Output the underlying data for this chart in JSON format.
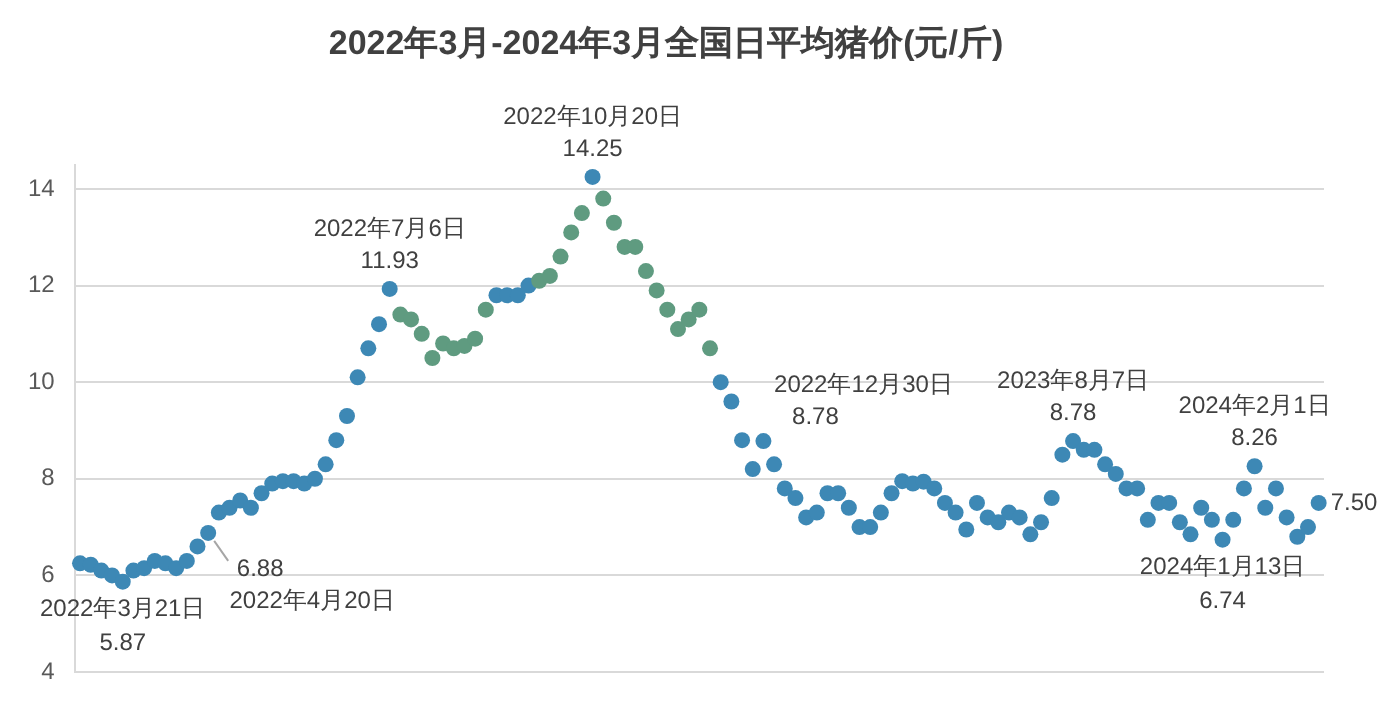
{
  "chart_data": {
    "type": "scatter",
    "title": "2022年3月-2024年3月全国日平均猪价(元/斤)",
    "categories": [
      null,
      null,
      null,
      null,
      null,
      null,
      null,
      null,
      null,
      null,
      null,
      null,
      null,
      null,
      null,
      null,
      null,
      null,
      null,
      null,
      null,
      null,
      null,
      null,
      null,
      null,
      null,
      null,
      null,
      null,
      null,
      null,
      null,
      null,
      null,
      null,
      null,
      null,
      null,
      null,
      null,
      null,
      null,
      null,
      null,
      null,
      null,
      null,
      null,
      null,
      null,
      null,
      null,
      null,
      null,
      null,
      null,
      null,
      null,
      null,
      null,
      null,
      null,
      null,
      null,
      null,
      null,
      null,
      null,
      null,
      null,
      null,
      null,
      null,
      null,
      null,
      null,
      null,
      null,
      null,
      null,
      null,
      null,
      null,
      null,
      null,
      null,
      null,
      null,
      null,
      null,
      null,
      null,
      null,
      null,
      null,
      null,
      null,
      null,
      null,
      null,
      null,
      null,
      null,
      null,
      null,
      null,
      null,
      null,
      null,
      null,
      null,
      null,
      null,
      null,
      null,
      null
    ],
    "values": [
      6.25,
      6.22,
      6.1,
      6.0,
      5.87,
      6.1,
      6.15,
      6.3,
      6.25,
      6.15,
      6.3,
      6.6,
      6.88,
      7.3,
      7.4,
      7.55,
      7.4,
      7.7,
      7.9,
      7.95,
      7.95,
      7.9,
      8.0,
      8.3,
      8.8,
      9.3,
      10.1,
      10.7,
      11.2,
      11.93,
      11.4,
      11.3,
      11.0,
      10.5,
      10.8,
      10.7,
      10.75,
      10.9,
      11.5,
      11.8,
      11.8,
      11.8,
      12.0,
      12.1,
      12.2,
      12.6,
      13.1,
      13.5,
      14.25,
      13.8,
      13.3,
      12.8,
      12.8,
      12.3,
      11.9,
      11.5,
      11.1,
      11.3,
      11.5,
      10.7,
      10.0,
      9.6,
      8.8,
      8.2,
      8.78,
      8.3,
      7.8,
      7.6,
      7.2,
      7.3,
      7.7,
      7.7,
      7.4,
      7.0,
      7.0,
      7.3,
      7.7,
      7.95,
      7.9,
      7.94,
      7.8,
      7.5,
      7.3,
      6.95,
      7.5,
      7.2,
      7.1,
      7.3,
      7.2,
      6.85,
      7.1,
      7.6,
      8.5,
      8.78,
      8.6,
      8.6,
      8.3,
      8.1,
      7.8,
      7.8,
      7.15,
      7.5,
      7.5,
      7.1,
      6.85,
      7.4,
      7.15,
      6.74,
      7.15,
      7.8,
      8.26,
      7.4,
      7.8,
      7.2,
      6.8,
      7.0,
      7.5
    ],
    "colors": [
      "#3d88b5",
      "#3d88b5",
      "#3d88b5",
      "#3d88b5",
      "#3d88b5",
      "#3d88b5",
      "#3d88b5",
      "#3d88b5",
      "#3d88b5",
      "#3d88b5",
      "#3d88b5",
      "#3d88b5",
      "#3d88b5",
      "#3d88b5",
      "#3d88b5",
      "#3d88b5",
      "#3d88b5",
      "#3d88b5",
      "#3d88b5",
      "#3d88b5",
      "#3d88b5",
      "#3d88b5",
      "#3d88b5",
      "#3d88b5",
      "#3d88b5",
      "#3d88b5",
      "#3d88b5",
      "#3d88b5",
      "#3d88b5",
      "#3d88b5",
      "#5f9b80",
      "#5f9b80",
      "#5f9b80",
      "#5f9b80",
      "#5f9b80",
      "#5f9b80",
      "#5f9b80",
      "#5f9b80",
      "#5f9b80",
      "#3d88b5",
      "#3d88b5",
      "#3d88b5",
      "#3d88b5",
      "#5f9b80",
      "#5f9b80",
      "#5f9b80",
      "#5f9b80",
      "#5f9b80",
      "#3d88b5",
      "#5f9b80",
      "#5f9b80",
      "#5f9b80",
      "#5f9b80",
      "#5f9b80",
      "#5f9b80",
      "#5f9b80",
      "#5f9b80",
      "#5f9b80",
      "#5f9b80",
      "#5f9b80",
      "#3d88b5",
      "#3d88b5",
      "#3d88b5",
      "#3d88b5",
      "#3d88b5",
      "#3d88b5",
      "#3d88b5",
      "#3d88b5",
      "#3d88b5",
      "#3d88b5",
      "#3d88b5",
      "#3d88b5",
      "#3d88b5",
      "#3d88b5",
      "#3d88b5",
      "#3d88b5",
      "#3d88b5",
      "#3d88b5",
      "#3d88b5",
      "#3d88b5",
      "#3d88b5",
      "#3d88b5",
      "#3d88b5",
      "#3d88b5",
      "#3d88b5",
      "#3d88b5",
      "#3d88b5",
      "#3d88b5",
      "#3d88b5",
      "#3d88b5",
      "#3d88b5",
      "#3d88b5",
      "#3d88b5",
      "#3d88b5",
      "#3d88b5",
      "#3d88b5",
      "#3d88b5",
      "#3d88b5",
      "#3d88b5",
      "#3d88b5",
      "#3d88b5",
      "#3d88b5",
      "#3d88b5",
      "#3d88b5",
      "#3d88b5",
      "#3d88b5",
      "#3d88b5",
      "#3d88b5",
      "#3d88b5",
      "#3d88b5",
      "#3d88b5",
      "#3d88b5",
      "#3d88b5",
      "#3d88b5",
      "#3d88b5",
      "#3d88b5",
      "#3d88b5"
    ],
    "value_labels": [
      null,
      null,
      null,
      null,
      "5.87",
      null,
      null,
      null,
      null,
      null,
      null,
      null,
      "6.88",
      null,
      null,
      null,
      null,
      null,
      null,
      null,
      null,
      null,
      null,
      null,
      null,
      null,
      null,
      null,
      null,
      "11.93",
      null,
      null,
      null,
      null,
      null,
      null,
      null,
      null,
      null,
      null,
      null,
      null,
      null,
      null,
      null,
      null,
      null,
      null,
      "14.25",
      null,
      null,
      null,
      null,
      null,
      null,
      null,
      null,
      null,
      null,
      null,
      null,
      null,
      null,
      null,
      "8.78",
      null,
      null,
      null,
      null,
      null,
      null,
      null,
      null,
      null,
      null,
      null,
      null,
      null,
      null,
      null,
      null,
      null,
      null,
      null,
      null,
      null,
      null,
      null,
      null,
      null,
      null,
      null,
      null,
      "8.78",
      null,
      null,
      null,
      null,
      null,
      null,
      null,
      null,
      null,
      null,
      null,
      null,
      null,
      "6.74",
      null,
      null,
      "8.26",
      null,
      null,
      null,
      null,
      null,
      "7.50"
    ],
    "annotations": [
      "2022年3月21日",
      "2022年4月20日",
      "2022年7月6日",
      "2022年10月20日",
      "2022年12月30日",
      "2023年8月7日",
      "2024年1月13日",
      "2024年2月1日"
    ],
    "ylim": [
      4,
      14.5
    ],
    "yticks": [
      4,
      6,
      8,
      10,
      12,
      14
    ],
    "grid": "y",
    "marker": "circle",
    "tick_labels": "y",
    "legend": false
  }
}
